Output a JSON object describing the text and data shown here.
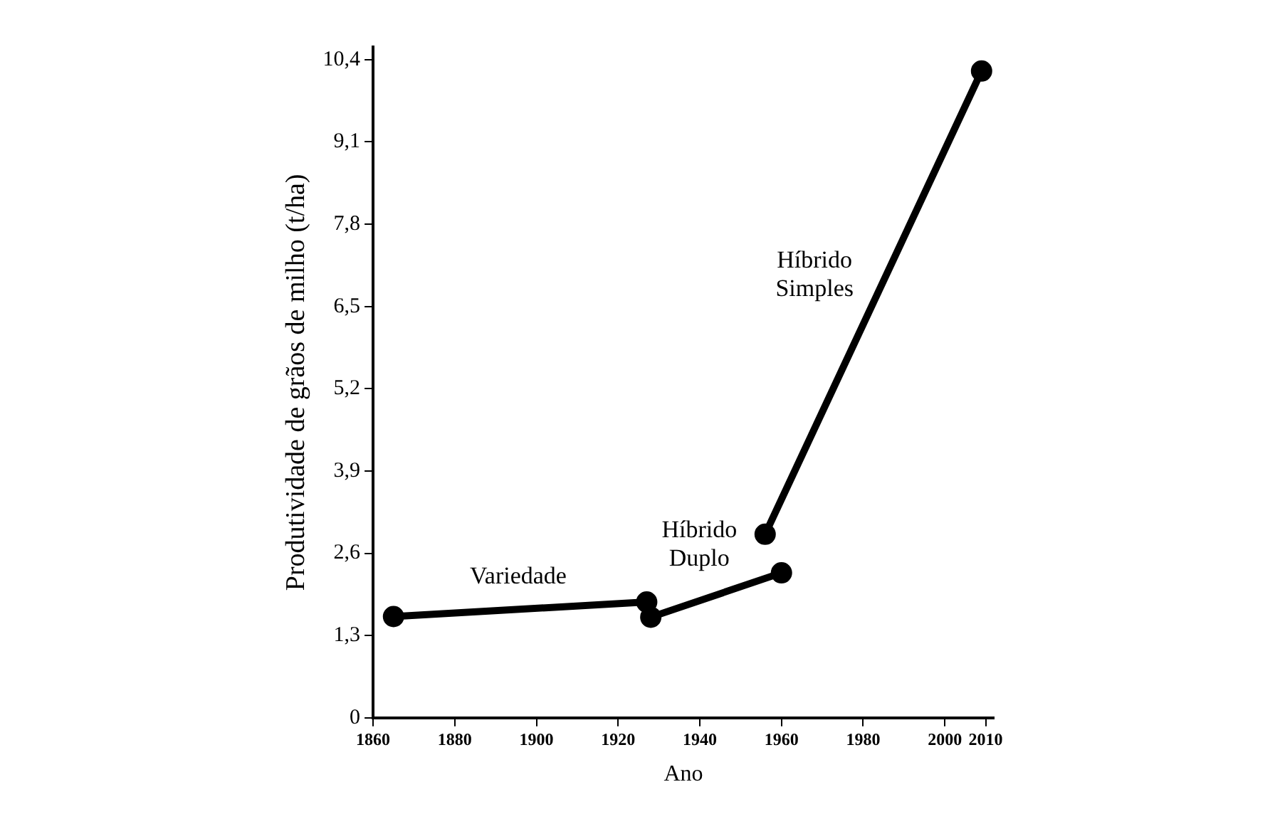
{
  "chart_data": {
    "type": "line",
    "xlabel": "Ano",
    "ylabel": "Produtividade de grãos de milho (t/ha)",
    "xlim": [
      1860,
      2012
    ],
    "xticks": [
      1860,
      1880,
      1900,
      1920,
      1940,
      1960,
      1980,
      2000,
      2010
    ],
    "ylim": [
      0,
      10.6
    ],
    "yticks": [
      0,
      {
        "value": 1.3,
        "label": "1,3"
      },
      {
        "value": 2.6,
        "label": "2,6"
      },
      {
        "value": 3.9,
        "label": "3,9"
      },
      {
        "value": 5.2,
        "label": "5,2"
      },
      {
        "value": 6.5,
        "label": "6,5"
      },
      {
        "value": 7.8,
        "label": "7,8"
      },
      {
        "value": 9.1,
        "label": "9,1"
      },
      {
        "value": 10.4,
        "label": "10,4"
      }
    ],
    "grid": false,
    "legend": false,
    "marker": "circle",
    "line_style": "solid",
    "series": [
      {
        "name": "Variedade",
        "color": "#000000",
        "x": [
          1865,
          1927
        ],
        "values": [
          1.6,
          1.83
        ]
      },
      {
        "name": "Híbrido Duplo",
        "color": "#000000",
        "x": [
          1928,
          1960
        ],
        "values": [
          1.59,
          2.29
        ]
      },
      {
        "name": "Híbrido Simples",
        "color": "#000000",
        "x": [
          1956,
          2009
        ],
        "values": [
          2.9,
          10.22
        ]
      }
    ]
  }
}
